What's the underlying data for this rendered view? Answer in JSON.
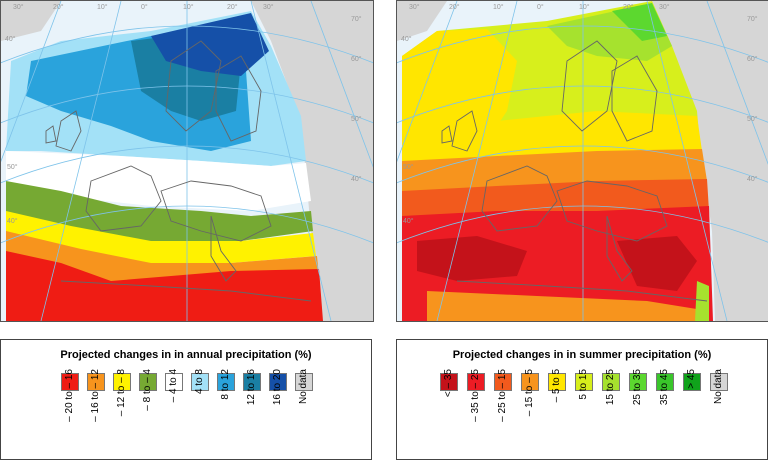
{
  "colors": {
    "ocean": "#e9f3fa",
    "land_nodata": "#d6d6d6",
    "graticule": "#7ec3ea",
    "coast": "#666666"
  },
  "map_left": {
    "degree_labels": [
      "30°",
      "40°",
      "20°",
      "10°",
      "0°",
      "10°",
      "20°",
      "30°",
      "40°",
      "50°",
      "60°",
      "70°",
      "50°",
      "40°"
    ]
  },
  "map_right": {
    "degree_labels": [
      "30°",
      "40°",
      "20°",
      "10°",
      "0°",
      "10°",
      "20°",
      "30°",
      "40°",
      "50°",
      "60°",
      "70°",
      "50°",
      "40°"
    ]
  },
  "legend_left": {
    "title": "Projected changes in in annual precipitation (%)",
    "items": [
      {
        "label": "– 20 to – 16",
        "color": "#ef1c14"
      },
      {
        "label": "– 16 to – 12",
        "color": "#f7941d"
      },
      {
        "label": "– 12 to – 8",
        "color": "#fff200"
      },
      {
        "label": "– 8 to – 4",
        "color": "#76a933"
      },
      {
        "label": "– 4 to 4",
        "color": "#ffffff"
      },
      {
        "label": "4 to 8",
        "color": "#a3e1f7"
      },
      {
        "label": "8 to 12",
        "color": "#2aa3dc"
      },
      {
        "label": "12 to 16",
        "color": "#1a7fa3"
      },
      {
        "label": "16 to 20",
        "color": "#1550a8"
      },
      {
        "label": "No data",
        "color": "#d6d6d6"
      }
    ]
  },
  "legend_right": {
    "title": "Projected changes in in summer precipitation (%)",
    "items": [
      {
        "label": "< – 35",
        "color": "#c4121a"
      },
      {
        "label": "– 35 to – 25",
        "color": "#ec1c24"
      },
      {
        "label": "– 25 to – 15",
        "color": "#f25a1d"
      },
      {
        "label": "– 15 to – 5",
        "color": "#f7941d"
      },
      {
        "label": "– 5 to 5",
        "color": "#ffe600"
      },
      {
        "label": "5 to 15",
        "color": "#d7ef1c"
      },
      {
        "label": "15 to 25",
        "color": "#a6e22e"
      },
      {
        "label": "25 to 35",
        "color": "#5cd82f"
      },
      {
        "label": "35 to 45",
        "color": "#39c62a"
      },
      {
        "label": "> 45",
        "color": "#10a31b"
      },
      {
        "label": "No data",
        "color": "#d6d6d6"
      }
    ]
  }
}
